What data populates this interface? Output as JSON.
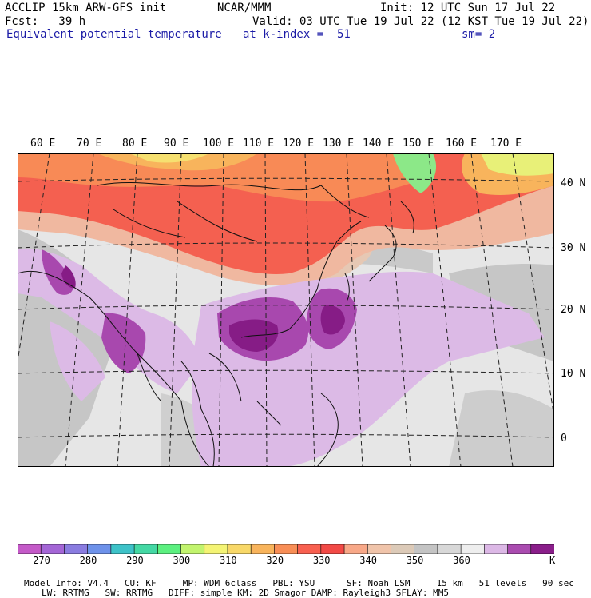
{
  "header": {
    "model": "ACCLIP 15km ARW-GFS init",
    "center": "NCAR/MMM",
    "init": "Init: 12 UTC Sun 17 Jul 22",
    "fcst": "Fcst:   39 h",
    "valid": "Valid: 03 UTC Tue 19 Jul 22 (12 KST Tue 19 Jul 22)",
    "field": "Equivalent potential temperature",
    "level": "at k-index =  51",
    "smooth": "sm= 2"
  },
  "map": {
    "lon_labels": [
      "60 E",
      "70 E",
      "80 E",
      "90 E",
      "100 E",
      "110 E",
      "120 E",
      "130 E",
      "140 E",
      "150 E",
      "160 E",
      "170 E"
    ],
    "lat_labels": [
      "40 N",
      "30 N",
      "20 N",
      "10 N",
      "0"
    ]
  },
  "colorbar": {
    "colors": [
      "#c45ac8",
      "#a466d6",
      "#8a7ce0",
      "#6e92ea",
      "#3ec2c8",
      "#44d8a4",
      "#5cf080",
      "#c2f46e",
      "#f4f474",
      "#f8d868",
      "#f8b45c",
      "#f88e56",
      "#f86050",
      "#f24a46",
      "#f8a888",
      "#f0c4aa",
      "#dccab8",
      "#c4c4c4",
      "#d8d8d8",
      "#eeeeee",
      "#dcb8e6",
      "#aa4cb0",
      "#8a1e8a"
    ],
    "labels": [
      "270",
      "280",
      "290",
      "300",
      "310",
      "320",
      "330",
      "340",
      "350",
      "360"
    ],
    "unit": "K"
  },
  "model_info": {
    "line1": [
      "Model Info: V4.4",
      "CU: KF",
      "MP: WDM 6class",
      "PBL: YSU",
      "SF: Noah LSM",
      "15 km",
      "51 levels",
      "90 sec"
    ],
    "line2": [
      "LW: RRTMG",
      "SW: RRTMG",
      "DIFF: simple",
      "KM: 2D Smagor",
      "DAMP: Rayleigh3",
      "SFLAY: MM5"
    ]
  }
}
